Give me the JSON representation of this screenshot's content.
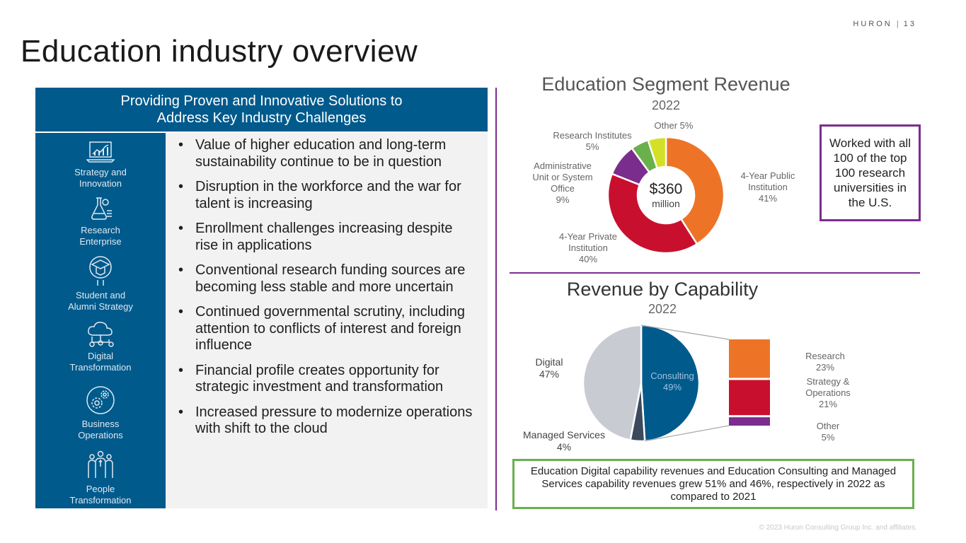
{
  "header": {
    "brand": "HURON",
    "separator": "|",
    "page_number": "13"
  },
  "page_title": "Education industry overview",
  "left_panel": {
    "heading_line1": "Providing Proven and Innovative Solutions to",
    "heading_line2": "Address Key Industry Challenges",
    "capabilities": [
      {
        "line1": "Strategy and",
        "line2": "Innovation",
        "icon": "laptop-chart-icon"
      },
      {
        "line1": "Research",
        "line2": "Enterprise",
        "icon": "lab-flask-icon"
      },
      {
        "line1": "Student and",
        "line2": "Alumni Strategy",
        "icon": "graduation-cap-icon"
      },
      {
        "line1": "Digital",
        "line2": "Transformation",
        "icon": "cloud-network-icon"
      },
      {
        "line1": "Business",
        "line2": "Operations",
        "icon": "gears-icon"
      },
      {
        "line1": "People",
        "line2": "Transformation",
        "icon": "people-group-icon"
      }
    ],
    "bullets": [
      "Value of higher education and long-term sustainability continue to be in question",
      "Disruption in the workforce and the war for talent is increasing",
      "Enrollment challenges increasing despite rise in applications",
      "Conventional research funding sources are becoming less stable and more uncertain",
      "Continued governmental scrutiny, including attention to conflicts of interest and foreign influence",
      "Financial profile creates opportunity for strategic investment and transformation",
      "Increased pressure to modernize operations with shift to the cloud"
    ]
  },
  "segment_revenue": {
    "center_value": "$360",
    "center_unit": "million",
    "labels": {
      "public_1": "4-Year Public",
      "public_2": "Institution",
      "public_pct": "41%",
      "private_1": "4-Year Private",
      "private_2": "Institution",
      "private_pct": "40%",
      "admin_1": "Administrative",
      "admin_2": "Unit or System",
      "admin_3": "Office",
      "admin_pct": "9%",
      "research_1": "Research Institutes",
      "research_pct": "5%",
      "other": "Other 5%"
    }
  },
  "capability_revenue": {
    "labels": {
      "digital": "Digital",
      "digital_pct": "47%",
      "consulting": "Consulting",
      "consulting_pct": "49%",
      "managed": "Managed Services",
      "managed_pct": "4%",
      "research": "Research",
      "research_pct": "23%",
      "strategy_1": "Strategy &",
      "strategy_2": "Operations",
      "strategy_pct": "21%",
      "other": "Other",
      "other_pct": "5%"
    }
  },
  "chart_data": [
    {
      "type": "pie",
      "variant": "donut",
      "title": "Education Segment Revenue",
      "subtitle": "2022",
      "center_label": "$360 million",
      "categories": [
        "4-Year Public Institution",
        "4-Year Private Institution",
        "Administrative Unit or System Office",
        "Research Institutes",
        "Other"
      ],
      "values": [
        41,
        40,
        9,
        5,
        5
      ],
      "colors": [
        "#ed7427",
        "#c8102e",
        "#7b2d8e",
        "#6ab04c",
        "#d4e026"
      ]
    },
    {
      "type": "pie",
      "title": "Revenue by Capability",
      "subtitle": "2022",
      "categories": [
        "Consulting",
        "Managed Services",
        "Digital"
      ],
      "values": [
        49,
        4,
        47
      ],
      "colors": [
        "#005a8c",
        "#3b4a5c",
        "#c8ccd2"
      ],
      "breakdown": {
        "of": "Consulting",
        "categories": [
          "Research",
          "Strategy & Operations",
          "Other"
        ],
        "values": [
          23,
          21,
          5
        ],
        "colors": [
          "#ed7427",
          "#c8102e",
          "#7b2d8e"
        ]
      }
    }
  ],
  "callouts": {
    "top100": "Worked with all 100 of the top 100 research universities in the U.S.",
    "growth": "Education Digital capability revenues and Education Consulting and Managed Services capability revenues grew 51% and 46%, respectively in 2022 as compared to 2021"
  },
  "footer": {
    "copyright": "© 2023 Huron Consulting Group Inc. and affiliates."
  }
}
